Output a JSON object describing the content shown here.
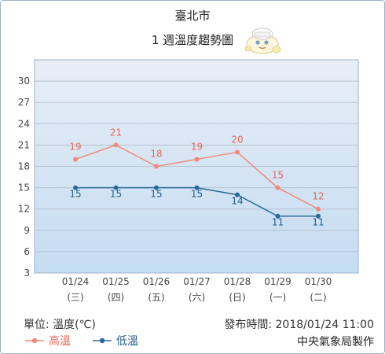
{
  "title": "臺北市",
  "subtitle": "1 週溫度趨勢圖",
  "unit_label": "單位: 溫度(℃)",
  "issued_label": "發布時間: 2018/01/24 11:00",
  "credit": "中央氣象局製作",
  "legend": {
    "high": "高溫",
    "low": "低溫"
  },
  "colors": {
    "high": "#ef8a78",
    "high_text": "#e8685a",
    "low": "#2a6a97",
    "low_text": "#1f5f8a",
    "plot_top": "#e8eef7",
    "plot_bottom": "#c4dcf1",
    "grid": "#b8c4d2"
  },
  "chart_data": {
    "type": "line",
    "categories": [
      "01/24",
      "01/25",
      "01/26",
      "01/27",
      "01/28",
      "01/29",
      "01/30"
    ],
    "weekdays": [
      "(三)",
      "(四)",
      "(五)",
      "(六)",
      "(日)",
      "(一)",
      "(二)"
    ],
    "series": [
      {
        "name": "高溫",
        "values": [
          19,
          21,
          18,
          19,
          20,
          15,
          12
        ]
      },
      {
        "name": "低溫",
        "values": [
          15,
          15,
          15,
          15,
          14,
          11,
          11
        ]
      }
    ],
    "yticks": [
      3,
      6,
      9,
      12,
      15,
      18,
      21,
      24,
      27,
      30
    ],
    "ylim": [
      3,
      33
    ],
    "grid": true
  }
}
